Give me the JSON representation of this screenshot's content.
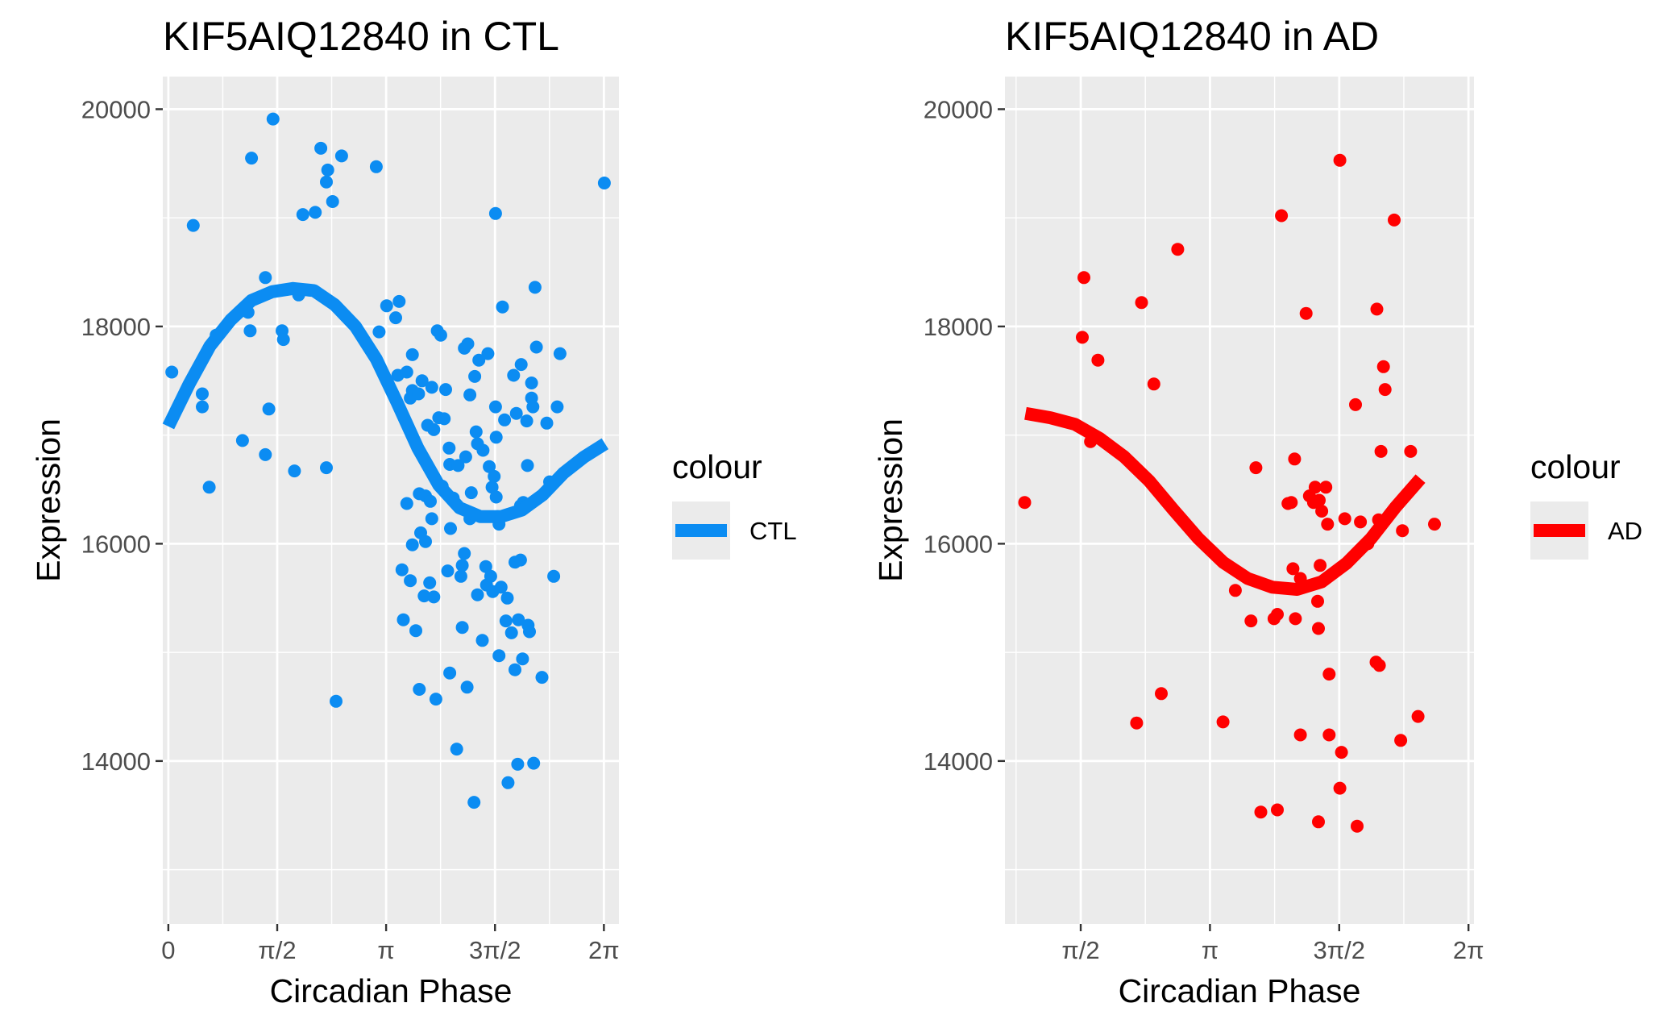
{
  "chart_data": [
    {
      "type": "scatter",
      "title": "KIF5AIQ12840 in CTL",
      "xlabel": "Circadian Phase",
      "ylabel": "Expression",
      "xlim": [
        -0.08,
        6.5
      ],
      "ylim": [
        12500,
        20300
      ],
      "x_ticks": [
        0,
        1.5708,
        3.1416,
        4.7124,
        6.2832
      ],
      "x_tick_labels": [
        "0",
        "π/2",
        "π",
        "3π/2",
        "2π"
      ],
      "y_ticks": [
        14000,
        16000,
        18000,
        20000
      ],
      "y_tick_labels": [
        "14000",
        "16000",
        "18000",
        "20000"
      ],
      "grid": true,
      "legend": {
        "title": "colour",
        "label": "CTL",
        "placement": "right"
      },
      "color": "#0b8cf2",
      "series": [
        {
          "name": "CTL",
          "points": [
            [
              0.05,
              17580
            ],
            [
              0.36,
              18930
            ],
            [
              0.49,
              17380
            ],
            [
              0.49,
              17260
            ],
            [
              0.59,
              16520
            ],
            [
              0.69,
              17920
            ],
            [
              1.07,
              16950
            ],
            [
              1.15,
              18130
            ],
            [
              1.18,
              17960
            ],
            [
              1.2,
              19550
            ],
            [
              1.4,
              16820
            ],
            [
              1.4,
              18450
            ],
            [
              1.45,
              17240
            ],
            [
              1.51,
              19910
            ],
            [
              1.64,
              17960
            ],
            [
              1.66,
              17880
            ],
            [
              1.82,
              16670
            ],
            [
              1.88,
              18290
            ],
            [
              1.94,
              19030
            ],
            [
              2.12,
              19050
            ],
            [
              2.2,
              19640
            ],
            [
              2.28,
              19330
            ],
            [
              2.28,
              16700
            ],
            [
              2.3,
              19440
            ],
            [
              2.37,
              19150
            ],
            [
              2.42,
              14550
            ],
            [
              2.5,
              19570
            ],
            [
              3.0,
              19470
            ],
            [
              3.04,
              17950
            ],
            [
              3.15,
              18190
            ],
            [
              3.28,
              18080
            ],
            [
              3.31,
              17550
            ],
            [
              3.33,
              18230
            ],
            [
              3.37,
              15760
            ],
            [
              3.39,
              15300
            ],
            [
              3.44,
              17580
            ],
            [
              3.44,
              16370
            ],
            [
              3.49,
              15660
            ],
            [
              3.49,
              17340
            ],
            [
              3.52,
              17410
            ],
            [
              3.52,
              17740
            ],
            [
              3.52,
              15990
            ],
            [
              3.57,
              15200
            ],
            [
              3.61,
              17380
            ],
            [
              3.62,
              16460
            ],
            [
              3.62,
              14660
            ],
            [
              3.64,
              16100
            ],
            [
              3.66,
              17500
            ],
            [
              3.69,
              15520
            ],
            [
              3.71,
              16440
            ],
            [
              3.71,
              16020
            ],
            [
              3.74,
              17090
            ],
            [
              3.77,
              15640
            ],
            [
              3.78,
              16390
            ],
            [
              3.8,
              17440
            ],
            [
              3.8,
              16230
            ],
            [
              3.83,
              17050
            ],
            [
              3.83,
              15510
            ],
            [
              3.86,
              14570
            ],
            [
              3.88,
              17960
            ],
            [
              3.9,
              17160
            ],
            [
              3.93,
              17920
            ],
            [
              3.95,
              16530
            ],
            [
              3.98,
              17150
            ],
            [
              4.0,
              17420
            ],
            [
              4.03,
              15750
            ],
            [
              4.05,
              16880
            ],
            [
              4.06,
              14810
            ],
            [
              4.06,
              16730
            ],
            [
              4.07,
              16140
            ],
            [
              4.11,
              16420
            ],
            [
              4.16,
              14110
            ],
            [
              4.18,
              16720
            ],
            [
              4.22,
              15700
            ],
            [
              4.24,
              15800
            ],
            [
              4.24,
              15230
            ],
            [
              4.27,
              17800
            ],
            [
              4.27,
              15910
            ],
            [
              4.29,
              16800
            ],
            [
              4.31,
              14680
            ],
            [
              4.32,
              17840
            ],
            [
              4.35,
              17370
            ],
            [
              4.35,
              16230
            ],
            [
              4.37,
              16470
            ],
            [
              4.41,
              13620
            ],
            [
              4.42,
              17540
            ],
            [
              4.44,
              17030
            ],
            [
              4.46,
              16920
            ],
            [
              4.46,
              15530
            ],
            [
              4.48,
              17690
            ],
            [
              4.53,
              15110
            ],
            [
              4.54,
              16860
            ],
            [
              4.58,
              15790
            ],
            [
              4.59,
              15620
            ],
            [
              4.61,
              17750
            ],
            [
              4.63,
              16710
            ],
            [
              4.65,
              15700
            ],
            [
              4.67,
              16520
            ],
            [
              4.68,
              15560
            ],
            [
              4.7,
              16620
            ],
            [
              4.72,
              19040
            ],
            [
              4.72,
              17260
            ],
            [
              4.73,
              16980
            ],
            [
              4.73,
              16430
            ],
            [
              4.75,
              16250
            ],
            [
              4.77,
              16180
            ],
            [
              4.77,
              14970
            ],
            [
              4.8,
              15600
            ],
            [
              4.82,
              18180
            ],
            [
              4.85,
              17140
            ],
            [
              4.87,
              15290
            ],
            [
              4.89,
              15500
            ],
            [
              4.9,
              13800
            ],
            [
              4.95,
              15180
            ],
            [
              4.98,
              17550
            ],
            [
              5.0,
              15830
            ],
            [
              5.0,
              14840
            ],
            [
              5.02,
              17200
            ],
            [
              5.04,
              13970
            ],
            [
              5.05,
              15300
            ],
            [
              5.08,
              15850
            ],
            [
              5.08,
              16350
            ],
            [
              5.09,
              17650
            ],
            [
              5.11,
              14940
            ],
            [
              5.12,
              16380
            ],
            [
              5.17,
              17130
            ],
            [
              5.18,
              16720
            ],
            [
              5.19,
              15250
            ],
            [
              5.21,
              15190
            ],
            [
              5.24,
              17480
            ],
            [
              5.24,
              17340
            ],
            [
              5.26,
              17260
            ],
            [
              5.27,
              13980
            ],
            [
              5.29,
              18360
            ],
            [
              5.31,
              17810
            ],
            [
              5.39,
              14770
            ],
            [
              5.46,
              17110
            ],
            [
              5.5,
              16570
            ],
            [
              5.56,
              15700
            ],
            [
              5.61,
              17260
            ],
            [
              5.65,
              17750
            ],
            [
              6.29,
              19320
            ]
          ],
          "fit": [
            [
              0,
              17080
            ],
            [
              0.3,
              17470
            ],
            [
              0.6,
              17820
            ],
            [
              0.9,
              18060
            ],
            [
              1.2,
              18240
            ],
            [
              1.5,
              18320
            ],
            [
              1.8,
              18350
            ],
            [
              2.1,
              18330
            ],
            [
              2.4,
              18200
            ],
            [
              2.7,
              18000
            ],
            [
              3.0,
              17700
            ],
            [
              3.3,
              17300
            ],
            [
              3.6,
              16880
            ],
            [
              3.9,
              16540
            ],
            [
              4.2,
              16330
            ],
            [
              4.5,
              16250
            ],
            [
              4.8,
              16250
            ],
            [
              5.1,
              16310
            ],
            [
              5.4,
              16450
            ],
            [
              5.7,
              16650
            ],
            [
              6.0,
              16800
            ],
            [
              6.3,
              16920
            ]
          ]
        }
      ]
    },
    {
      "type": "scatter",
      "title": "KIF5AIQ12840 in AD",
      "xlabel": "Circadian Phase",
      "ylabel": "Expression",
      "xlim": [
        0.65,
        6.35
      ],
      "ylim": [
        12500,
        20300
      ],
      "x_ticks": [
        1.5708,
        3.1416,
        4.7124,
        6.2832
      ],
      "x_tick_labels": [
        "π/2",
        "π",
        "3π/2",
        "2π"
      ],
      "y_ticks": [
        14000,
        16000,
        18000,
        20000
      ],
      "y_tick_labels": [
        "14000",
        "16000",
        "18000",
        "20000"
      ],
      "grid": true,
      "legend": {
        "title": "colour",
        "label": "AD",
        "placement": "right"
      },
      "color": "#ff0000",
      "series": [
        {
          "name": "AD",
          "points": [
            [
              0.89,
              16380
            ],
            [
              1.59,
              17900
            ],
            [
              1.61,
              18450
            ],
            [
              1.69,
              16940
            ],
            [
              1.78,
              17690
            ],
            [
              2.25,
              14350
            ],
            [
              2.31,
              18220
            ],
            [
              2.46,
              17470
            ],
            [
              2.55,
              14620
            ],
            [
              2.75,
              18710
            ],
            [
              3.3,
              14360
            ],
            [
              3.45,
              15570
            ],
            [
              3.64,
              15290
            ],
            [
              3.7,
              16700
            ],
            [
              3.76,
              13530
            ],
            [
              3.92,
              15310
            ],
            [
              3.96,
              13550
            ],
            [
              3.96,
              15350
            ],
            [
              4.01,
              19020
            ],
            [
              4.09,
              16370
            ],
            [
              4.13,
              16380
            ],
            [
              4.15,
              15770
            ],
            [
              4.17,
              16780
            ],
            [
              4.18,
              15310
            ],
            [
              4.24,
              14240
            ],
            [
              4.24,
              15680
            ],
            [
              4.31,
              18120
            ],
            [
              4.35,
              16440
            ],
            [
              4.4,
              16380
            ],
            [
              4.42,
              16520
            ],
            [
              4.45,
              15470
            ],
            [
              4.46,
              15220
            ],
            [
              4.46,
              13440
            ],
            [
              4.47,
              16400
            ],
            [
              4.48,
              15800
            ],
            [
              4.5,
              16300
            ],
            [
              4.55,
              16520
            ],
            [
              4.57,
              16180
            ],
            [
              4.59,
              14800
            ],
            [
              4.59,
              14240
            ],
            [
              4.72,
              19530
            ],
            [
              4.72,
              13750
            ],
            [
              4.74,
              14080
            ],
            [
              4.78,
              16230
            ],
            [
              4.91,
              17280
            ],
            [
              4.93,
              13400
            ],
            [
              4.97,
              16200
            ],
            [
              5.06,
              16000
            ],
            [
              5.16,
              14910
            ],
            [
              5.17,
              18160
            ],
            [
              5.19,
              16220
            ],
            [
              5.2,
              14880
            ],
            [
              5.22,
              16850
            ],
            [
              5.25,
              17630
            ],
            [
              5.27,
              17420
            ],
            [
              5.38,
              18980
            ],
            [
              5.46,
              14190
            ],
            [
              5.48,
              16120
            ],
            [
              5.58,
              16850
            ],
            [
              5.67,
              14410
            ],
            [
              5.87,
              16180
            ]
          ],
          "fit": [
            [
              0.9,
              17200
            ],
            [
              1.2,
              17160
            ],
            [
              1.5,
              17100
            ],
            [
              1.8,
              16970
            ],
            [
              2.1,
              16800
            ],
            [
              2.4,
              16580
            ],
            [
              2.7,
              16310
            ],
            [
              3.0,
              16050
            ],
            [
              3.3,
              15830
            ],
            [
              3.6,
              15680
            ],
            [
              3.9,
              15600
            ],
            [
              4.2,
              15580
            ],
            [
              4.5,
              15650
            ],
            [
              4.8,
              15820
            ],
            [
              5.1,
              16050
            ],
            [
              5.4,
              16340
            ],
            [
              5.7,
              16600
            ]
          ]
        }
      ]
    }
  ]
}
